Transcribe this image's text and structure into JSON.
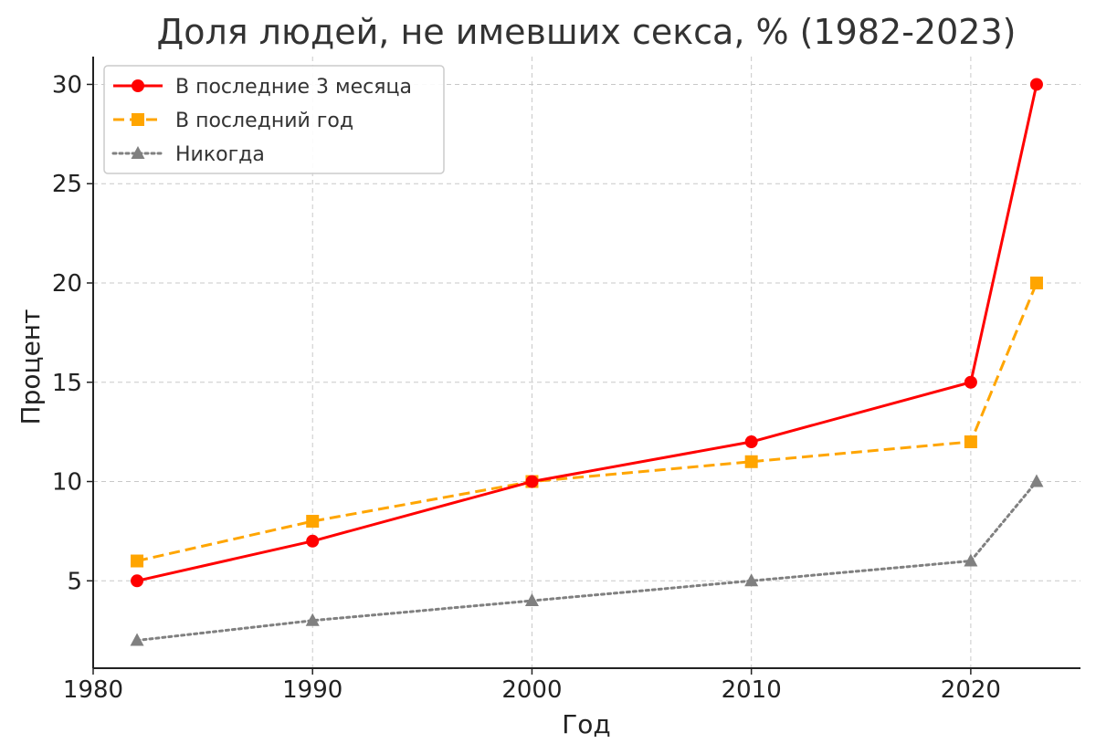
{
  "chart_data": {
    "type": "line",
    "title": "Доля людей, не имевших секса, % (1982-2023)",
    "xlabel": "Год",
    "ylabel": "Процент",
    "x": [
      1982,
      1990,
      2000,
      2010,
      2020,
      2023
    ],
    "xlim": [
      1980,
      2025
    ],
    "ylim": [
      0.6,
      31.4
    ],
    "xticks": [
      1980,
      1990,
      2000,
      2010,
      2020
    ],
    "yticks": [
      5,
      10,
      15,
      20,
      25,
      30
    ],
    "grid": true,
    "legend_position": "top-left",
    "series": [
      {
        "name": "В последние 3 месяца",
        "values": [
          5,
          7,
          10,
          12,
          15,
          30
        ],
        "color": "#ff0000",
        "line_style": "solid",
        "marker": "circle"
      },
      {
        "name": "В последний год",
        "values": [
          6,
          8,
          10,
          11,
          12,
          20
        ],
        "color": "#ffa500",
        "line_style": "dashed",
        "marker": "square"
      },
      {
        "name": "Никогда",
        "values": [
          2,
          3,
          4,
          5,
          6,
          10
        ],
        "color": "#808080",
        "line_style": "dotted",
        "marker": "triangle"
      }
    ]
  }
}
